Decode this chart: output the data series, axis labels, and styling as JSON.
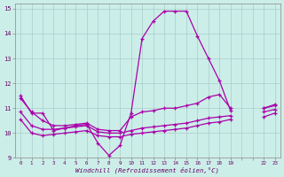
{
  "background_color": "#cceee8",
  "grid_color": "#aacccc",
  "line_color": "#aa00aa",
  "xlim": [
    -0.5,
    23.5
  ],
  "ylim": [
    9,
    15.2
  ],
  "yticks": [
    9,
    10,
    11,
    12,
    13,
    14,
    15
  ],
  "xlabel": "Windchill (Refroidissement éolien,°C)",
  "xtick_labels": [
    "0",
    "1",
    "2",
    "3",
    "4",
    "5",
    "6",
    "7",
    "8",
    "9",
    "10",
    "11",
    "12",
    "13",
    "14",
    "15",
    "16",
    "17",
    "18",
    "19",
    "",
    "",
    "22",
    "23"
  ],
  "series_main": [
    11.5,
    10.8,
    10.8,
    10.1,
    10.2,
    10.3,
    10.35,
    9.6,
    9.1,
    9.5,
    10.8,
    13.8,
    14.5,
    14.9,
    14.9,
    14.9,
    13.9,
    13.0,
    12.1,
    10.9,
    null,
    null,
    11.0,
    11.1
  ],
  "series_line1": [
    11.4,
    10.85,
    10.5,
    10.3,
    10.3,
    10.35,
    10.4,
    10.15,
    10.1,
    10.1,
    10.65,
    10.85,
    10.9,
    11.0,
    11.0,
    11.1,
    11.2,
    11.45,
    11.55,
    11.0,
    null,
    null,
    11.0,
    11.15
  ],
  "series_line2": [
    10.85,
    10.3,
    10.15,
    10.15,
    10.2,
    10.25,
    10.3,
    10.05,
    10.0,
    10.0,
    10.1,
    10.2,
    10.25,
    10.3,
    10.35,
    10.4,
    10.5,
    10.6,
    10.65,
    10.7,
    null,
    null,
    10.85,
    10.95
  ],
  "series_line3": [
    10.55,
    10.0,
    9.9,
    9.95,
    10.0,
    10.05,
    10.1,
    9.9,
    9.85,
    9.85,
    9.95,
    10.0,
    10.05,
    10.1,
    10.15,
    10.2,
    10.3,
    10.4,
    10.45,
    10.55,
    null,
    null,
    10.65,
    10.8
  ]
}
